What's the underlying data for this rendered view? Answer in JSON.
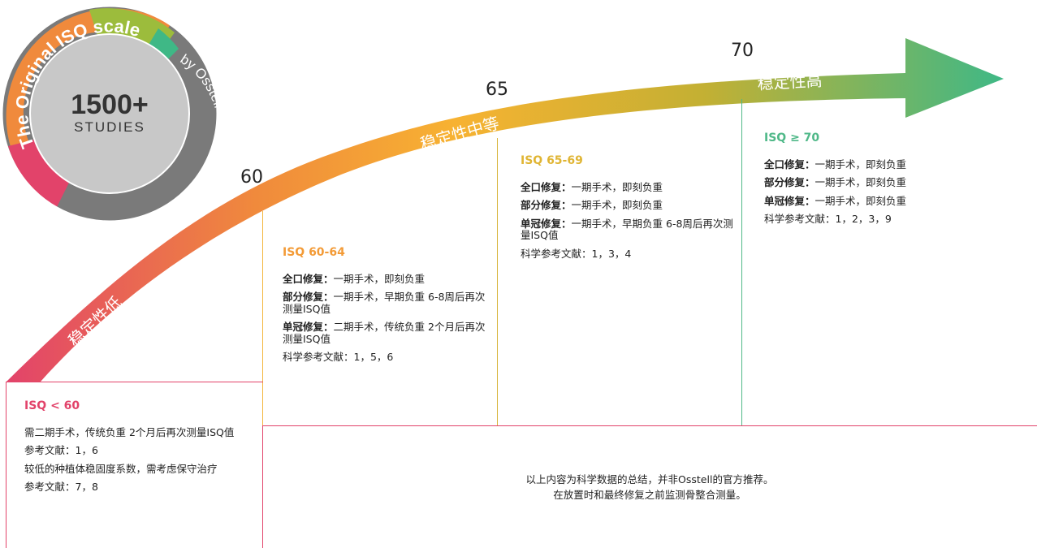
{
  "badge": {
    "arc_text": "The Original ISQ scale",
    "by_text": "by Osstell technology",
    "count": "1500+",
    "studies": "STUDIES"
  },
  "arrow": {
    "labels": {
      "low": "稳定性低",
      "mid": "稳定性中等",
      "high": "稳定性高"
    },
    "ticks": [
      "60",
      "65",
      "70"
    ],
    "colors": [
      "#e2436a",
      "#f08a3c",
      "#f7b232",
      "#c3b033",
      "#3fb886"
    ]
  },
  "panels": {
    "low": {
      "title": "ISQ < 60",
      "lines": [
        "需二期手术，传统负重 2个月后再次测量ISQ值",
        "参考文献：1，6",
        "较低的种植体稳固度系数，需考虑保守治疗",
        "参考文献：7，8"
      ]
    },
    "p60": {
      "title": "ISQ 60-64",
      "rows": [
        {
          "k": "全口修复：",
          "v": "一期手术，即刻负重"
        },
        {
          "k": "部分修复：",
          "v": "一期手术，早期负重 6-8周后再次测量ISQ值"
        },
        {
          "k": "单冠修复：",
          "v": "二期手术，传统负重 2个月后再次测量ISQ值"
        }
      ],
      "ref": "科学参考文献：1，5，6"
    },
    "p65": {
      "title": "ISQ 65-69",
      "rows": [
        {
          "k": "全口修复：",
          "v": "一期手术，即刻负重"
        },
        {
          "k": "部分修复：",
          "v": "一期手术，即刻负重"
        },
        {
          "k": "单冠修复：",
          "v": "一期手术，早期负重 6-8周后再次测量ISQ值"
        }
      ],
      "ref": "科学参考文献：1，3，4"
    },
    "p70": {
      "title": "ISQ ≥ 70",
      "rows": [
        {
          "k": "全口修复：",
          "v": "一期手术，即刻负重"
        },
        {
          "k": "部分修复：",
          "v": "一期手术，即刻负重"
        },
        {
          "k": "单冠修复：",
          "v": "一期手术，即刻负重"
        }
      ],
      "ref": "科学参考文献：1，2，3，9"
    }
  },
  "footer": {
    "line1": "以上内容为科学数据的总结，并非Osstell的官方推荐。",
    "line2": "在放置时和最终修复之前监测骨整合测量。"
  },
  "colors": {
    "red": "#e2436a",
    "orange": "#f39b37",
    "yellow": "#e0b534",
    "green": "#4fb888"
  }
}
